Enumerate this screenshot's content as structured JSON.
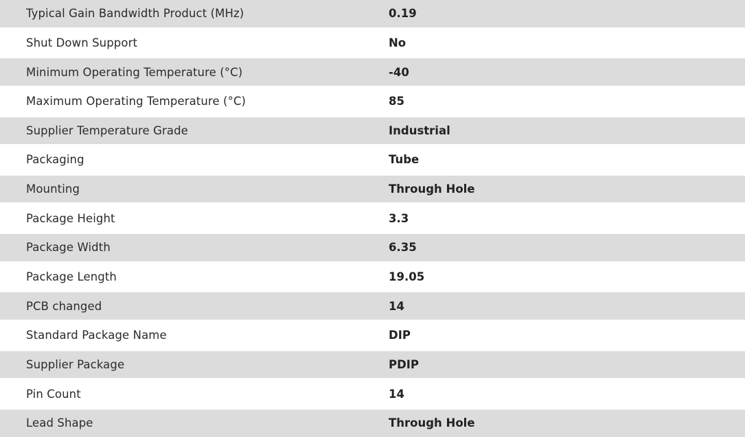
{
  "specs": [
    {
      "label": "Typical Gain Bandwidth Product (MHz)",
      "value": "0.19"
    },
    {
      "label": "Shut Down Support",
      "value": "No"
    },
    {
      "label": "Minimum Operating Temperature (°C)",
      "value": "-40"
    },
    {
      "label": "Maximum Operating Temperature (°C)",
      "value": "85"
    },
    {
      "label": "Supplier Temperature Grade",
      "value": "Industrial"
    },
    {
      "label": "Packaging",
      "value": "Tube"
    },
    {
      "label": "Mounting",
      "value": "Through Hole"
    },
    {
      "label": "Package Height",
      "value": "3.3"
    },
    {
      "label": "Package Width",
      "value": "6.35"
    },
    {
      "label": "Package Length",
      "value": "19.05"
    },
    {
      "label": "PCB changed",
      "value": "14"
    },
    {
      "label": "Standard Package Name",
      "value": "DIP"
    },
    {
      "label": "Supplier Package",
      "value": "PDIP"
    },
    {
      "label": "Pin Count",
      "value": "14"
    },
    {
      "label": "Lead Shape",
      "value": "Through Hole"
    }
  ],
  "colors": {
    "stripe": "#dcdcdc",
    "text": "#2b2b2b"
  }
}
